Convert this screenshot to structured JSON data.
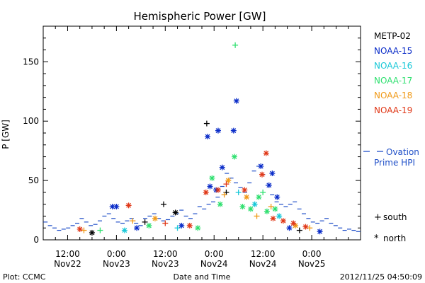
{
  "chart_data": {
    "type": "scatter",
    "title": "Hemispheric Power [GW]",
    "ylabel": "P [GW]",
    "xlabel": "Date and Time",
    "ylim": [
      0,
      180
    ],
    "xlim_hours": [
      0,
      78
    ],
    "yticks": [
      0,
      50,
      100,
      150
    ],
    "xticks": [
      {
        "t": 6,
        "time": "12:00",
        "date": "Nov22"
      },
      {
        "t": 18,
        "time": "0:00",
        "date": "Nov23"
      },
      {
        "t": 30,
        "time": "12:00",
        "date": "Nov23"
      },
      {
        "t": 42,
        "time": "0:00",
        "date": "Nov24"
      },
      {
        "t": 54,
        "time": "12:00",
        "date": "Nov24"
      },
      {
        "t": 66,
        "time": "0:00",
        "date": "Nov25"
      }
    ],
    "series": [
      {
        "name": "METP-02",
        "color": "#000000",
        "points": [
          {
            "x": 29.6,
            "y": 30,
            "m": "plus"
          },
          {
            "x": 32.5,
            "y": 23,
            "m": "star"
          },
          {
            "x": 40.2,
            "y": 98,
            "m": "plus"
          },
          {
            "x": 25.0,
            "y": 15,
            "m": "plus"
          },
          {
            "x": 45.0,
            "y": 40,
            "m": "plus"
          },
          {
            "x": 12.0,
            "y": 6,
            "m": "star"
          },
          {
            "x": 63.0,
            "y": 8,
            "m": "plus"
          }
        ]
      },
      {
        "name": "NOAA-15",
        "color": "#0a2cc8",
        "points": [
          {
            "x": 17.0,
            "y": 28,
            "m": "star"
          },
          {
            "x": 18.0,
            "y": 28,
            "m": "star"
          },
          {
            "x": 40.4,
            "y": 87,
            "m": "star"
          },
          {
            "x": 43.0,
            "y": 92,
            "m": "star"
          },
          {
            "x": 46.8,
            "y": 92,
            "m": "star"
          },
          {
            "x": 47.5,
            "y": 117,
            "m": "star"
          },
          {
            "x": 44.0,
            "y": 61,
            "m": "star"
          },
          {
            "x": 53.5,
            "y": 62,
            "m": "star"
          },
          {
            "x": 56.3,
            "y": 56,
            "m": "star"
          },
          {
            "x": 57.5,
            "y": 36,
            "m": "star"
          },
          {
            "x": 41.0,
            "y": 45,
            "m": "star"
          },
          {
            "x": 42.5,
            "y": 42,
            "m": "star"
          },
          {
            "x": 55.5,
            "y": 46,
            "m": "star"
          },
          {
            "x": 23.0,
            "y": 10,
            "m": "star"
          },
          {
            "x": 34.0,
            "y": 12,
            "m": "star"
          },
          {
            "x": 60.5,
            "y": 10,
            "m": "star"
          },
          {
            "x": 68.0,
            "y": 7,
            "m": "star"
          }
        ]
      },
      {
        "name": "NOAA-16",
        "color": "#18c8d8",
        "points": [
          {
            "x": 48.0,
            "y": 40,
            "m": "plus"
          },
          {
            "x": 52.0,
            "y": 30,
            "m": "star"
          },
          {
            "x": 20.0,
            "y": 8,
            "m": "star"
          },
          {
            "x": 33.0,
            "y": 10,
            "m": "plus"
          },
          {
            "x": 58.0,
            "y": 20,
            "m": "star"
          }
        ]
      },
      {
        "name": "NOAA-17",
        "color": "#30e070",
        "points": [
          {
            "x": 47.2,
            "y": 164,
            "m": "plus"
          },
          {
            "x": 47.0,
            "y": 70,
            "m": "star"
          },
          {
            "x": 41.5,
            "y": 52,
            "m": "star"
          },
          {
            "x": 49.0,
            "y": 28,
            "m": "star"
          },
          {
            "x": 51.0,
            "y": 26,
            "m": "star"
          },
          {
            "x": 53.0,
            "y": 36,
            "m": "star"
          },
          {
            "x": 55.0,
            "y": 24,
            "m": "star"
          },
          {
            "x": 57.0,
            "y": 26,
            "m": "star"
          },
          {
            "x": 38.0,
            "y": 10,
            "m": "star"
          },
          {
            "x": 26.0,
            "y": 12,
            "m": "star"
          },
          {
            "x": 43.5,
            "y": 30,
            "m": "star"
          },
          {
            "x": 54.0,
            "y": 40,
            "m": "plus"
          },
          {
            "x": 14.0,
            "y": 8,
            "m": "plus"
          }
        ]
      },
      {
        "name": "NOAA-18",
        "color": "#f09a18",
        "points": [
          {
            "x": 45.5,
            "y": 50,
            "m": "star"
          },
          {
            "x": 50.0,
            "y": 36,
            "m": "star"
          },
          {
            "x": 52.5,
            "y": 20,
            "m": "plus"
          },
          {
            "x": 56.0,
            "y": 28,
            "m": "plus"
          },
          {
            "x": 27.5,
            "y": 18,
            "m": "star"
          },
          {
            "x": 22.0,
            "y": 16,
            "m": "plus"
          },
          {
            "x": 10.0,
            "y": 8,
            "m": "plus"
          },
          {
            "x": 44.5,
            "y": 38,
            "m": "plus"
          },
          {
            "x": 62.0,
            "y": 12,
            "m": "star"
          },
          {
            "x": 65.5,
            "y": 10,
            "m": "plus"
          }
        ]
      },
      {
        "name": "NOAA-19",
        "color": "#e03818",
        "points": [
          {
            "x": 54.8,
            "y": 73,
            "m": "star"
          },
          {
            "x": 53.8,
            "y": 55,
            "m": "star"
          },
          {
            "x": 45.0,
            "y": 47,
            "m": "plus"
          },
          {
            "x": 43.0,
            "y": 42,
            "m": "star"
          },
          {
            "x": 49.5,
            "y": 42,
            "m": "star"
          },
          {
            "x": 21.0,
            "y": 29,
            "m": "star"
          },
          {
            "x": 40.0,
            "y": 40,
            "m": "star"
          },
          {
            "x": 56.5,
            "y": 18,
            "m": "star"
          },
          {
            "x": 59.0,
            "y": 16,
            "m": "star"
          },
          {
            "x": 61.5,
            "y": 14,
            "m": "star"
          },
          {
            "x": 64.5,
            "y": 11,
            "m": "star"
          },
          {
            "x": 30.0,
            "y": 14,
            "m": "plus"
          },
          {
            "x": 36.0,
            "y": 12,
            "m": "star"
          },
          {
            "x": 9.0,
            "y": 9,
            "m": "star"
          }
        ]
      }
    ],
    "hpi_color": "#1f4fc8",
    "hpi_values": [
      15,
      12,
      10,
      8,
      9,
      10,
      12,
      14,
      18,
      15,
      12,
      13,
      16,
      20,
      22,
      18,
      15,
      14,
      16,
      18,
      14,
      12,
      18,
      20,
      22,
      18,
      16,
      17,
      20,
      22,
      25,
      20,
      18,
      22,
      28,
      26,
      30,
      32,
      36,
      45,
      56,
      52,
      48,
      44,
      40,
      48,
      58,
      62,
      55,
      46,
      38,
      32,
      30,
      28,
      30,
      32,
      26,
      22,
      18,
      15,
      14,
      16,
      18,
      14,
      12,
      10,
      8,
      9,
      8,
      7
    ],
    "legend": [
      {
        "label": "METP-02",
        "color": "#000000"
      },
      {
        "label": "NOAA-15",
        "color": "#0a2cc8"
      },
      {
        "label": "NOAA-16",
        "color": "#18c8d8"
      },
      {
        "label": "NOAA-17",
        "color": "#30e070"
      },
      {
        "label": "NOAA-18",
        "color": "#f09a18"
      },
      {
        "label": "NOAA-19",
        "color": "#e03818"
      }
    ],
    "ovation_label": "Ovation",
    "ovation_label2": "Prime HPI",
    "ovation_color": "#1f4fc8",
    "marker_key": [
      {
        "symbol": "+",
        "label": "south"
      },
      {
        "symbol": "*",
        "label": "north"
      }
    ]
  },
  "footer": {
    "left": "Plot: CCMC",
    "right": "2012/11/25 04:50:09"
  }
}
